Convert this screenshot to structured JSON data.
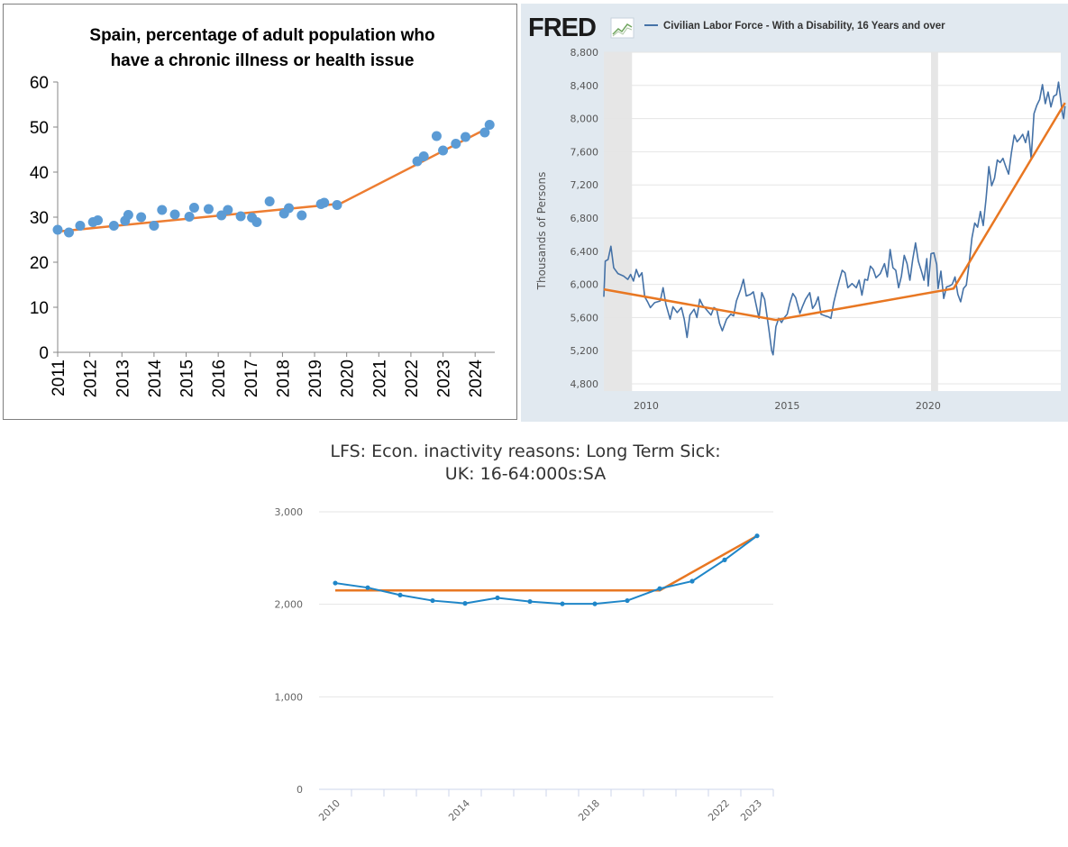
{
  "chart_data": [
    {
      "type": "scatter",
      "title_lines": [
        "Spain, percentage of adult population who",
        "have a chronic illness or health issue"
      ],
      "ylim": [
        0,
        60
      ],
      "y_ticks": [
        0,
        10,
        20,
        30,
        40,
        50,
        60
      ],
      "xlim": [
        2011,
        2024.5
      ],
      "x_ticks": [
        "2011",
        "2012",
        "2013",
        "2014",
        "2015",
        "2016",
        "2017",
        "2018",
        "2019",
        "2020",
        "2021",
        "2022",
        "2023",
        "2024"
      ],
      "points": [
        [
          2011.0,
          27.2
        ],
        [
          2011.35,
          26.6
        ],
        [
          2011.7,
          28.1
        ],
        [
          2012.1,
          28.9
        ],
        [
          2012.25,
          29.3
        ],
        [
          2012.75,
          28.1
        ],
        [
          2013.1,
          29.2
        ],
        [
          2013.2,
          30.5
        ],
        [
          2013.6,
          30.0
        ],
        [
          2014.0,
          28.1
        ],
        [
          2014.25,
          31.6
        ],
        [
          2014.65,
          30.6
        ],
        [
          2015.1,
          30.1
        ],
        [
          2015.25,
          32.1
        ],
        [
          2015.7,
          31.8
        ],
        [
          2016.1,
          30.4
        ],
        [
          2016.3,
          31.6
        ],
        [
          2016.7,
          30.2
        ],
        [
          2017.05,
          29.9
        ],
        [
          2017.2,
          28.9
        ],
        [
          2017.6,
          33.5
        ],
        [
          2018.05,
          30.8
        ],
        [
          2018.2,
          32.0
        ],
        [
          2018.6,
          30.4
        ],
        [
          2019.2,
          32.9
        ],
        [
          2019.3,
          33.2
        ],
        [
          2019.7,
          32.7
        ],
        [
          2022.2,
          42.4
        ],
        [
          2022.4,
          43.5
        ],
        [
          2022.8,
          48.0
        ],
        [
          2023.0,
          44.8
        ],
        [
          2023.4,
          46.3
        ],
        [
          2023.7,
          47.8
        ],
        [
          2024.3,
          48.8
        ],
        [
          2024.45,
          50.5
        ]
      ],
      "trend": [
        [
          2011.0,
          26.8
        ],
        [
          2019.8,
          33.0
        ],
        [
          2024.4,
          49.8
        ]
      ],
      "point_color": "#5b9bd5",
      "trend_color": "#ed7d31"
    },
    {
      "type": "line",
      "logo": "FRED",
      "legend": "Civilian Labor Force - With a Disability, 16 Years and over",
      "ylabel": "Thousands of Persons",
      "ylim": [
        4800,
        8800
      ],
      "y_ticks": [
        "4,800",
        "5,200",
        "5,600",
        "6,000",
        "6,400",
        "6,800",
        "7,200",
        "7,600",
        "8,000",
        "8,400",
        "8,800"
      ],
      "xlim": [
        2008.5,
        2024.7
      ],
      "x_ticks": [
        "2010",
        "2015",
        "2020"
      ],
      "recessions": [
        [
          2008.5,
          2009.5
        ],
        [
          2020.1,
          2020.35
        ]
      ],
      "series_anchors": [
        [
          2008.5,
          5850
        ],
        [
          2008.55,
          6280
        ],
        [
          2008.65,
          6300
        ],
        [
          2008.75,
          6460
        ],
        [
          2008.85,
          6200
        ],
        [
          2009.0,
          6130
        ],
        [
          2009.2,
          6100
        ],
        [
          2009.35,
          6060
        ],
        [
          2009.45,
          6120
        ],
        [
          2009.55,
          6040
        ],
        [
          2009.65,
          6180
        ],
        [
          2009.75,
          6090
        ],
        [
          2009.85,
          6140
        ],
        [
          2009.95,
          5850
        ],
        [
          2010.05,
          5790
        ],
        [
          2010.15,
          5720
        ],
        [
          2010.3,
          5780
        ],
        [
          2010.5,
          5800
        ],
        [
          2010.6,
          5960
        ],
        [
          2010.7,
          5760
        ],
        [
          2010.85,
          5580
        ],
        [
          2010.95,
          5730
        ],
        [
          2011.1,
          5660
        ],
        [
          2011.25,
          5720
        ],
        [
          2011.35,
          5580
        ],
        [
          2011.45,
          5360
        ],
        [
          2011.55,
          5630
        ],
        [
          2011.7,
          5700
        ],
        [
          2011.8,
          5600
        ],
        [
          2011.9,
          5820
        ],
        [
          2012.0,
          5750
        ],
        [
          2012.15,
          5690
        ],
        [
          2012.3,
          5630
        ],
        [
          2012.4,
          5720
        ],
        [
          2012.5,
          5700
        ],
        [
          2012.6,
          5530
        ],
        [
          2012.7,
          5440
        ],
        [
          2012.85,
          5580
        ],
        [
          2013.0,
          5640
        ],
        [
          2013.1,
          5620
        ],
        [
          2013.2,
          5800
        ],
        [
          2013.35,
          5940
        ],
        [
          2013.45,
          6060
        ],
        [
          2013.55,
          5860
        ],
        [
          2013.7,
          5880
        ],
        [
          2013.8,
          5910
        ],
        [
          2013.9,
          5750
        ],
        [
          2014.0,
          5590
        ],
        [
          2014.1,
          5900
        ],
        [
          2014.2,
          5820
        ],
        [
          2014.35,
          5460
        ],
        [
          2014.45,
          5200
        ],
        [
          2014.5,
          5150
        ],
        [
          2014.6,
          5490
        ],
        [
          2014.7,
          5590
        ],
        [
          2014.8,
          5540
        ],
        [
          2014.9,
          5600
        ],
        [
          2015.0,
          5640
        ],
        [
          2015.1,
          5780
        ],
        [
          2015.2,
          5890
        ],
        [
          2015.3,
          5840
        ],
        [
          2015.45,
          5650
        ],
        [
          2015.55,
          5740
        ],
        [
          2015.65,
          5820
        ],
        [
          2015.8,
          5900
        ],
        [
          2015.9,
          5710
        ],
        [
          2016.0,
          5760
        ],
        [
          2016.1,
          5850
        ],
        [
          2016.2,
          5640
        ],
        [
          2016.35,
          5620
        ],
        [
          2016.45,
          5610
        ],
        [
          2016.55,
          5590
        ],
        [
          2016.65,
          5780
        ],
        [
          2016.75,
          5920
        ],
        [
          2016.85,
          6050
        ],
        [
          2016.95,
          6170
        ],
        [
          2017.05,
          6140
        ],
        [
          2017.15,
          5960
        ],
        [
          2017.3,
          6010
        ],
        [
          2017.45,
          5960
        ],
        [
          2017.55,
          6050
        ],
        [
          2017.65,
          5870
        ],
        [
          2017.75,
          6060
        ],
        [
          2017.85,
          6050
        ],
        [
          2017.95,
          6220
        ],
        [
          2018.05,
          6180
        ],
        [
          2018.15,
          6080
        ],
        [
          2018.3,
          6130
        ],
        [
          2018.45,
          6250
        ],
        [
          2018.55,
          6090
        ],
        [
          2018.65,
          6420
        ],
        [
          2018.75,
          6200
        ],
        [
          2018.85,
          6170
        ],
        [
          2018.95,
          5960
        ],
        [
          2019.05,
          6100
        ],
        [
          2019.15,
          6350
        ],
        [
          2019.25,
          6250
        ],
        [
          2019.35,
          6050
        ],
        [
          2019.45,
          6300
        ],
        [
          2019.55,
          6500
        ],
        [
          2019.65,
          6280
        ],
        [
          2019.75,
          6170
        ],
        [
          2019.85,
          6050
        ],
        [
          2019.95,
          6310
        ],
        [
          2020.0,
          5980
        ],
        [
          2020.1,
          6370
        ],
        [
          2020.2,
          6380
        ],
        [
          2020.3,
          6240
        ],
        [
          2020.35,
          5950
        ],
        [
          2020.45,
          6160
        ],
        [
          2020.55,
          5830
        ],
        [
          2020.65,
          5970
        ],
        [
          2020.75,
          5980
        ],
        [
          2020.85,
          6000
        ],
        [
          2020.95,
          6090
        ],
        [
          2021.05,
          5880
        ],
        [
          2021.15,
          5790
        ],
        [
          2021.25,
          5950
        ],
        [
          2021.35,
          5990
        ],
        [
          2021.45,
          6250
        ],
        [
          2021.55,
          6560
        ],
        [
          2021.65,
          6740
        ],
        [
          2021.75,
          6690
        ],
        [
          2021.85,
          6880
        ],
        [
          2021.95,
          6710
        ],
        [
          2022.05,
          7030
        ],
        [
          2022.15,
          7420
        ],
        [
          2022.25,
          7190
        ],
        [
          2022.35,
          7280
        ],
        [
          2022.45,
          7500
        ],
        [
          2022.55,
          7470
        ],
        [
          2022.65,
          7520
        ],
        [
          2022.75,
          7420
        ],
        [
          2022.85,
          7330
        ],
        [
          2022.95,
          7590
        ],
        [
          2023.05,
          7800
        ],
        [
          2023.15,
          7720
        ],
        [
          2023.25,
          7760
        ],
        [
          2023.35,
          7810
        ],
        [
          2023.45,
          7710
        ],
        [
          2023.55,
          7850
        ],
        [
          2023.65,
          7520
        ],
        [
          2023.75,
          8060
        ],
        [
          2023.85,
          8160
        ],
        [
          2023.95,
          8230
        ],
        [
          2024.05,
          8410
        ],
        [
          2024.15,
          8180
        ],
        [
          2024.25,
          8320
        ],
        [
          2024.35,
          8140
        ],
        [
          2024.45,
          8270
        ],
        [
          2024.55,
          8290
        ],
        [
          2024.62,
          8440
        ],
        [
          2024.7,
          8220
        ],
        [
          2024.75,
          8080
        ],
        [
          2024.8,
          8000
        ],
        [
          2024.85,
          8150
        ]
      ],
      "trend": [
        [
          2008.5,
          5940
        ],
        [
          2014.6,
          5570
        ],
        [
          2020.9,
          5950
        ],
        [
          2024.85,
          8190
        ]
      ],
      "line_color": "#4572a7",
      "trend_color": "#e87722",
      "recession_color": "#e6e6e6"
    },
    {
      "type": "line",
      "title_lines": [
        "LFS: Econ. inactivity reasons: Long Term Sick:",
        "UK: 16-64:000s:SA"
      ],
      "ylim": [
        0,
        3000
      ],
      "y_ticks": [
        "0",
        "1,000",
        "2,000",
        "3,000"
      ],
      "x_ticks": [
        "2010",
        "2014",
        "2018",
        "2022",
        "2023"
      ],
      "x": [
        2010,
        2011,
        2012,
        2013,
        2014,
        2015,
        2016,
        2017,
        2018,
        2019,
        2020,
        2021,
        2022,
        2023
      ],
      "values": [
        2230,
        2180,
        2100,
        2040,
        2010,
        2070,
        2030,
        2005,
        2005,
        2040,
        2170,
        2250,
        2480,
        2740
      ],
      "trend": [
        [
          2010,
          2150
        ],
        [
          2020,
          2150
        ],
        [
          2023,
          2740
        ]
      ],
      "line_color": "#1f86c8",
      "trend_color": "#e87722"
    }
  ]
}
